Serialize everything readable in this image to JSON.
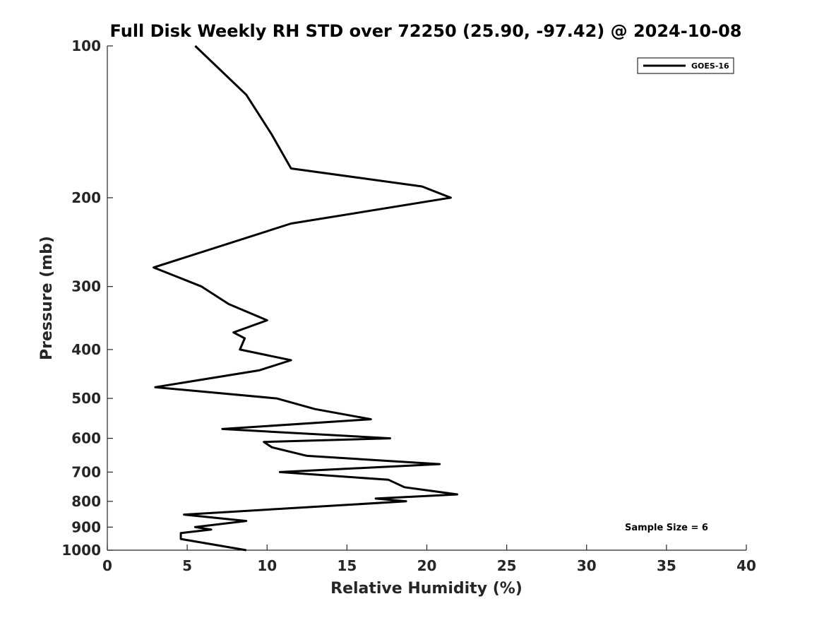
{
  "chart_data": {
    "type": "line",
    "title": "Full Disk Weekly RH STD over 72250 (25.90, -97.42) @ 2024-10-08",
    "xlabel": "Relative Humidity (%)",
    "ylabel": "Pressure (mb)",
    "xlim": [
      0,
      40
    ],
    "ylim": [
      100,
      1000
    ],
    "yscale": "log",
    "yaxis_reversed": true,
    "x_ticks": [
      0,
      5,
      10,
      15,
      20,
      25,
      30,
      35,
      40
    ],
    "x_tick_labels": [
      "0",
      "5",
      "10",
      "15",
      "20",
      "25",
      "30",
      "35",
      "40"
    ],
    "y_ticks": [
      100,
      200,
      300,
      400,
      500,
      600,
      700,
      800,
      900,
      1000
    ],
    "y_tick_labels": [
      "100",
      "200",
      "300",
      "400",
      "500",
      "600",
      "700",
      "800",
      "900",
      "1000"
    ],
    "grid": false,
    "legend": {
      "position": "top-right",
      "entries": [
        "GOES-16"
      ]
    },
    "annotation": "Sample Size = 6",
    "series": [
      {
        "name": "GOES-16",
        "color": "#000000",
        "points": [
          [
            5.5,
            100
          ],
          [
            8.7,
            125
          ],
          [
            10.3,
            150
          ],
          [
            11.5,
            175
          ],
          [
            19.7,
            190
          ],
          [
            21.5,
            200
          ],
          [
            11.5,
            225
          ],
          [
            2.9,
            275
          ],
          [
            5.9,
            300
          ],
          [
            7.6,
            325
          ],
          [
            10.0,
            350
          ],
          [
            7.9,
            370
          ],
          [
            8.6,
            380
          ],
          [
            8.3,
            400
          ],
          [
            11.5,
            420
          ],
          [
            9.5,
            440
          ],
          [
            3.0,
            475
          ],
          [
            10.6,
            500
          ],
          [
            13.0,
            525
          ],
          [
            16.5,
            550
          ],
          [
            7.2,
            575
          ],
          [
            17.7,
            600
          ],
          [
            9.8,
            610
          ],
          [
            10.3,
            625
          ],
          [
            12.5,
            650
          ],
          [
            20.8,
            675
          ],
          [
            10.8,
            700
          ],
          [
            17.6,
            725
          ],
          [
            18.6,
            750
          ],
          [
            21.9,
            775
          ],
          [
            16.8,
            790
          ],
          [
            18.7,
            800
          ],
          [
            4.8,
            850
          ],
          [
            8.7,
            875
          ],
          [
            5.5,
            900
          ],
          [
            6.5,
            910
          ],
          [
            4.6,
            925
          ],
          [
            4.6,
            950
          ],
          [
            8.7,
            1000
          ]
        ]
      }
    ]
  }
}
